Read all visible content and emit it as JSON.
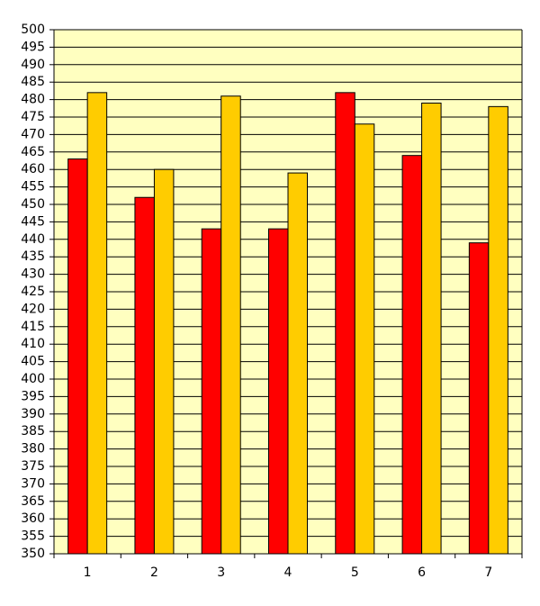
{
  "chart_data": {
    "type": "bar",
    "categories": [
      "1",
      "2",
      "3",
      "4",
      "5",
      "6",
      "7"
    ],
    "series": [
      {
        "color": "#ff0000",
        "values": [
          463,
          452,
          443,
          443,
          482,
          464,
          439
        ]
      },
      {
        "color": "#ffcc00",
        "values": [
          482,
          460,
          481,
          459,
          473,
          479,
          478
        ]
      }
    ],
    "ylim": [
      350,
      500
    ],
    "yticks": [
      350,
      355,
      360,
      365,
      370,
      375,
      380,
      385,
      390,
      395,
      400,
      405,
      410,
      415,
      420,
      425,
      430,
      435,
      440,
      445,
      450,
      455,
      460,
      465,
      470,
      475,
      480,
      485,
      490,
      495,
      500
    ],
    "grid": true,
    "plot_background": "#ffffc0"
  }
}
